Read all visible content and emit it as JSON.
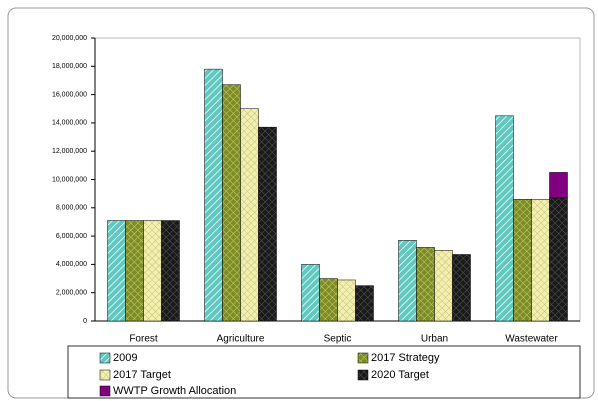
{
  "chart_data": {
    "type": "bar",
    "categories": [
      "Forest",
      "Agriculture",
      "Septic",
      "Urban",
      "Wastewater"
    ],
    "series": [
      {
        "name": "2009",
        "color": "#5fc8c0",
        "values": [
          7100000,
          17800000,
          4000000,
          5700000,
          14500000
        ]
      },
      {
        "name": "2017 Strategy",
        "color": "#7d8c2a",
        "values": [
          7100000,
          16700000,
          3000000,
          5200000,
          8600000
        ]
      },
      {
        "name": "2017 Target",
        "color": "#f2f0b0",
        "values": [
          7100000,
          15000000,
          2900000,
          5000000,
          8600000
        ]
      },
      {
        "name": "2020 Target",
        "color": "#1a1a1a",
        "values": [
          7100000,
          13700000,
          2500000,
          4700000,
          8700000
        ]
      },
      {
        "name": "WWTP Growth Allocation",
        "color": "#800080",
        "values": [
          null,
          null,
          null,
          null,
          1800000
        ],
        "stack": true
      }
    ],
    "ylim": [
      0,
      20000000
    ],
    "yticks": [
      0,
      {
        "value": 2000000,
        "label": "2,000,000"
      },
      {
        "value": 4000000,
        "label": "4,000,000"
      },
      {
        "value": 6000000,
        "label": "6,000,000"
      },
      {
        "value": 8000000,
        "label": "8,000,000"
      },
      {
        "value": 10000000,
        "label": "10,000,000"
      },
      {
        "value": 12000000,
        "label": "12,000,000"
      },
      {
        "value": 14000000,
        "label": "14,000,000"
      },
      {
        "value": 16000000,
        "label": "16,000,000"
      },
      {
        "value": 18000000,
        "label": "18,000,000"
      },
      {
        "value": 20000000,
        "label": "20,000,000"
      }
    ],
    "grid": false
  }
}
